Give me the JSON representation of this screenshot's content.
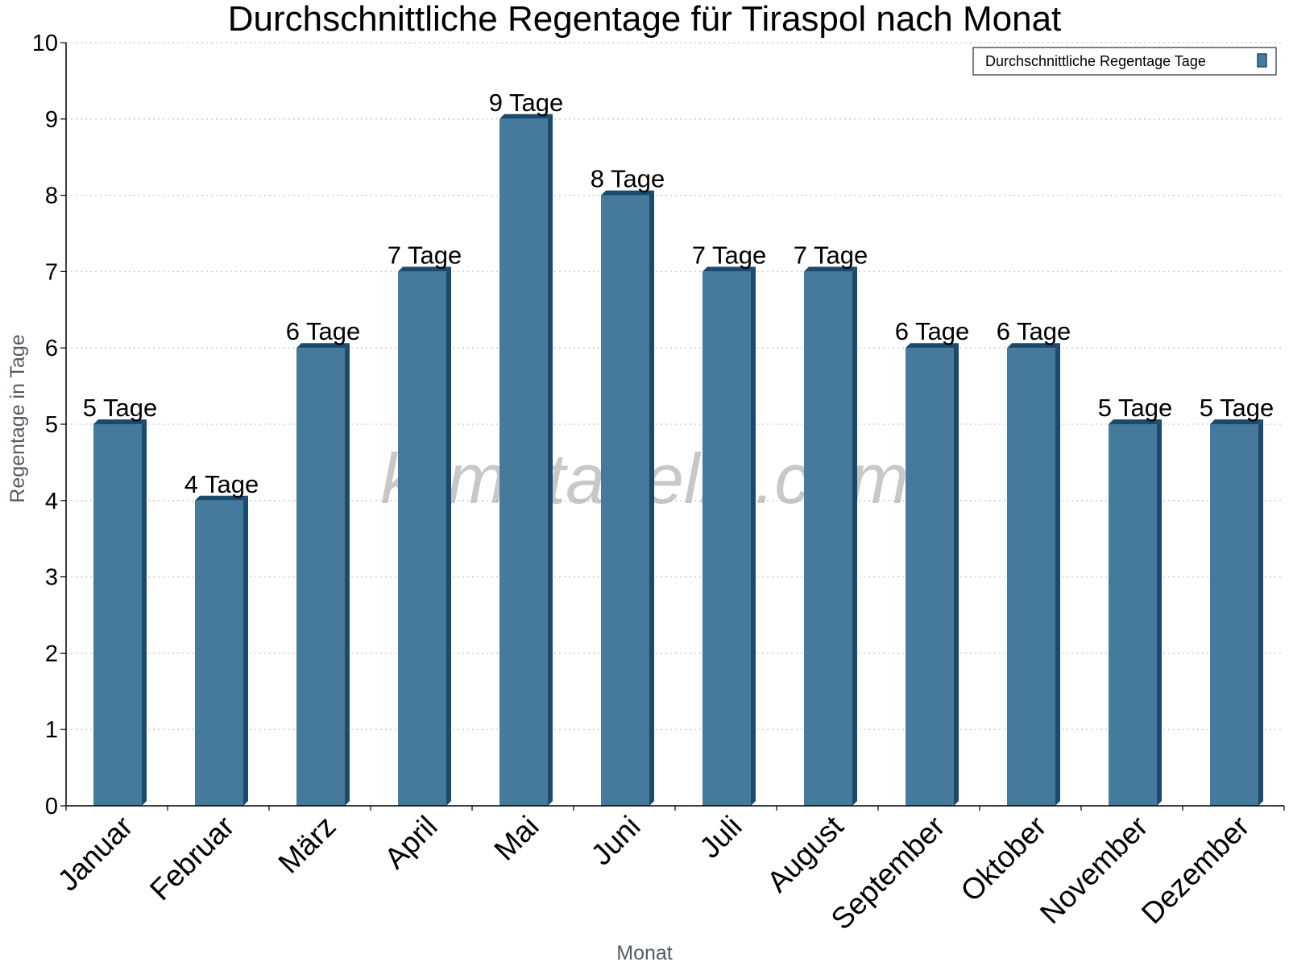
{
  "chart_data": {
    "type": "bar",
    "title": "Durchschnittliche Regentage für Tiraspol nach Monat",
    "xlabel": "Monat",
    "ylabel": "Regentage in Tage",
    "categories": [
      "Januar",
      "Februar",
      "März",
      "April",
      "Mai",
      "Juni",
      "Juli",
      "August",
      "September",
      "Oktober",
      "November",
      "Dezember"
    ],
    "series": [
      {
        "name": "Durchschnittliche Regentage Tage",
        "values": [
          5,
          4,
          6,
          7,
          9,
          8,
          7,
          7,
          6,
          6,
          5,
          5
        ],
        "color": "#467a9c"
      }
    ],
    "data_labels": [
      "5 Tage",
      "4 Tage",
      "6 Tage",
      "7 Tage",
      "9 Tage",
      "8 Tage",
      "7 Tage",
      "7 Tage",
      "6 Tage",
      "6 Tage",
      "5 Tage",
      "5 Tage"
    ],
    "yticks": [
      "0",
      "1",
      "2",
      "3",
      "4",
      "5",
      "6",
      "7",
      "8",
      "9",
      "10"
    ],
    "ylim": [
      0,
      10
    ],
    "grid": true,
    "legend_position": "top-right"
  },
  "watermark": "klimatabelle.com",
  "colors": {
    "bar_front": "#467a9c",
    "bar_side": "#1b4a6c",
    "grid": "#c8c8c8",
    "axis": "#000000"
  }
}
